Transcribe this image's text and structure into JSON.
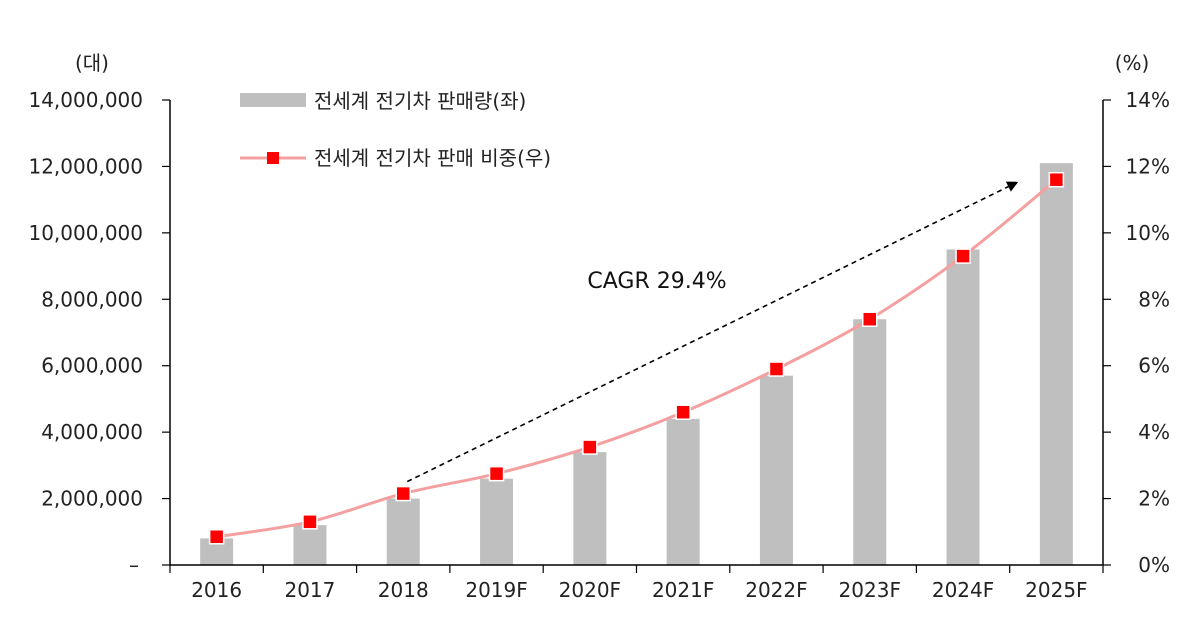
{
  "chart_data": {
    "type": "bar",
    "categories": [
      "2016",
      "2017",
      "2018",
      "2019F",
      "2020F",
      "2021F",
      "2022F",
      "2023F",
      "2024F",
      "2025F"
    ],
    "series": [
      {
        "name": "전세계 전기차 판매량(좌)",
        "type": "bar",
        "axis": "left",
        "color": "#bfbfbf",
        "values": [
          800000,
          1200000,
          2000000,
          2600000,
          3400000,
          4400000,
          5700000,
          7400000,
          9500000,
          12100000
        ]
      },
      {
        "name": "전세계 전기차 판매 비중(우)",
        "type": "line",
        "axis": "right",
        "color": "#f4a0a0",
        "marker_color": "#ff0000",
        "values": [
          0.85,
          1.3,
          2.15,
          2.75,
          3.55,
          4.6,
          5.9,
          7.4,
          9.3,
          11.6
        ]
      }
    ],
    "left_axis": {
      "unit": "(대)",
      "ylim": [
        0,
        14000000
      ],
      "ticks": [
        "–",
        "2,000,000",
        "4,000,000",
        "6,000,000",
        "8,000,000",
        "10,000,000",
        "12,000,000",
        "14,000,000"
      ]
    },
    "right_axis": {
      "unit": "(%)",
      "ylim": [
        0,
        14
      ],
      "ticks": [
        "0%",
        "2%",
        "4%",
        "6%",
        "8%",
        "10%",
        "12%",
        "14%"
      ]
    },
    "annotation": {
      "text": "CAGR 29.4%",
      "arrow_from": {
        "category": "2018",
        "value_pct": 2.15
      },
      "arrow_to": {
        "category": "2025F",
        "value_pct": 11.6
      }
    },
    "legend_placement": "top-left",
    "grid": false
  }
}
